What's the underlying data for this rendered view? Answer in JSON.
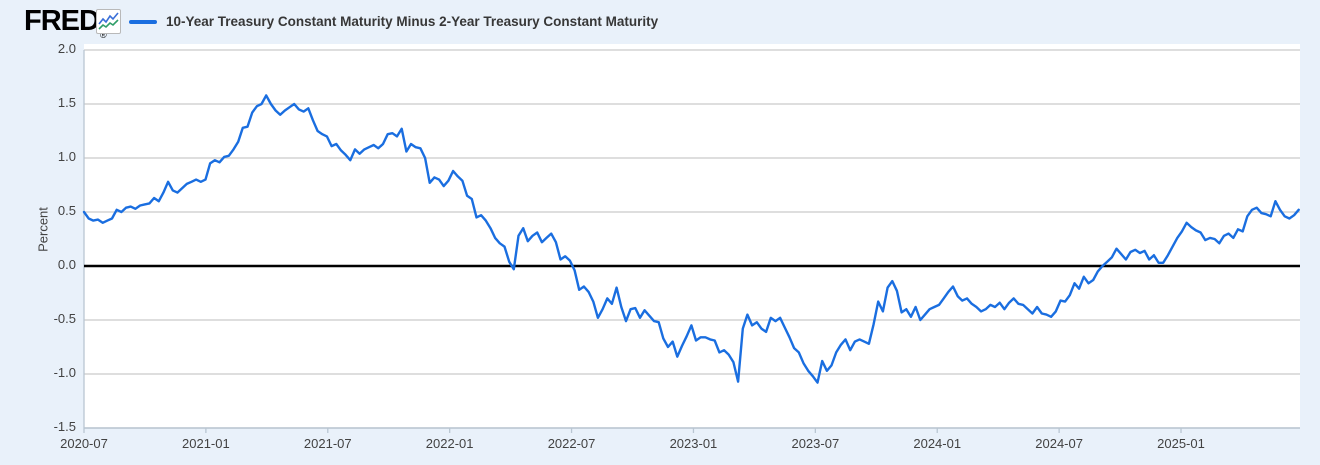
{
  "header": {
    "logo": "FRED",
    "registered_mark": "®",
    "legend_label": "10-Year Treasury Constant Maturity Minus 2-Year Treasury Constant Maturity"
  },
  "colors": {
    "page_bg": "#e9f1fa",
    "plot_bg": "#ffffff",
    "gridline": "#c9c9c9",
    "axis_border": "#b9c6d2",
    "zero_line": "#000000",
    "series_line": "#1a6ee0",
    "tick_text": "#424242",
    "icon_blue": "#3a6fd8",
    "icon_green": "#2f9e68"
  },
  "chart_data": {
    "type": "line",
    "title": "10-Year Treasury Constant Maturity Minus 2-Year Treasury Constant Maturity",
    "ylabel": "Percent",
    "ylim": [
      -1.5,
      2.0
    ],
    "y_ticks": [
      2.0,
      1.5,
      1.0,
      0.5,
      0.0,
      -0.5,
      -1.0,
      -1.5
    ],
    "x_tick_labels": [
      "2020-07",
      "2021-01",
      "2021-07",
      "2022-01",
      "2022-07",
      "2023-01",
      "2023-07",
      "2024-01",
      "2024-07",
      "2025-01"
    ],
    "x_tick_month_interval": 6,
    "grid": true,
    "zero_line": true,
    "legend_position": "top-left",
    "series": [
      {
        "name": "10-Year Treasury Constant Maturity Minus 2-Year Treasury Constant Maturity",
        "unit": "percent",
        "start_date": "2020-07-01",
        "step_days": 7,
        "values": [
          0.5,
          0.44,
          0.42,
          0.43,
          0.4,
          0.42,
          0.44,
          0.52,
          0.5,
          0.54,
          0.55,
          0.53,
          0.56,
          0.57,
          0.58,
          0.63,
          0.6,
          0.68,
          0.78,
          0.7,
          0.68,
          0.72,
          0.76,
          0.78,
          0.8,
          0.78,
          0.8,
          0.95,
          0.98,
          0.96,
          1.01,
          1.02,
          1.08,
          1.15,
          1.28,
          1.29,
          1.42,
          1.48,
          1.5,
          1.58,
          1.5,
          1.44,
          1.4,
          1.44,
          1.47,
          1.5,
          1.45,
          1.43,
          1.46,
          1.35,
          1.25,
          1.22,
          1.2,
          1.11,
          1.13,
          1.07,
          1.03,
          0.98,
          1.08,
          1.04,
          1.08,
          1.1,
          1.12,
          1.09,
          1.13,
          1.22,
          1.23,
          1.2,
          1.27,
          1.06,
          1.13,
          1.1,
          1.09,
          1.0,
          0.77,
          0.82,
          0.8,
          0.74,
          0.79,
          0.88,
          0.83,
          0.79,
          0.65,
          0.62,
          0.45,
          0.47,
          0.42,
          0.35,
          0.26,
          0.21,
          0.18,
          0.04,
          -0.03,
          0.28,
          0.35,
          0.23,
          0.28,
          0.31,
          0.22,
          0.26,
          0.3,
          0.22,
          0.06,
          0.09,
          0.05,
          -0.04,
          -0.22,
          -0.19,
          -0.24,
          -0.33,
          -0.48,
          -0.4,
          -0.3,
          -0.35,
          -0.2,
          -0.38,
          -0.51,
          -0.4,
          -0.39,
          -0.48,
          -0.41,
          -0.46,
          -0.51,
          -0.52,
          -0.67,
          -0.75,
          -0.7,
          -0.84,
          -0.74,
          -0.65,
          -0.55,
          -0.69,
          -0.66,
          -0.66,
          -0.68,
          -0.69,
          -0.8,
          -0.78,
          -0.82,
          -0.89,
          -1.07,
          -0.58,
          -0.45,
          -0.55,
          -0.52,
          -0.58,
          -0.61,
          -0.48,
          -0.51,
          -0.48,
          -0.57,
          -0.66,
          -0.76,
          -0.8,
          -0.9,
          -0.97,
          -1.02,
          -1.08,
          -0.88,
          -0.97,
          -0.92,
          -0.8,
          -0.73,
          -0.68,
          -0.78,
          -0.7,
          -0.68,
          -0.7,
          -0.72,
          -0.54,
          -0.33,
          -0.42,
          -0.2,
          -0.14,
          -0.23,
          -0.43,
          -0.4,
          -0.47,
          -0.38,
          -0.5,
          -0.45,
          -0.4,
          -0.38,
          -0.36,
          -0.3,
          -0.24,
          -0.19,
          -0.28,
          -0.32,
          -0.3,
          -0.35,
          -0.38,
          -0.42,
          -0.4,
          -0.36,
          -0.38,
          -0.34,
          -0.4,
          -0.34,
          -0.3,
          -0.35,
          -0.36,
          -0.4,
          -0.44,
          -0.38,
          -0.44,
          -0.45,
          -0.47,
          -0.42,
          -0.32,
          -0.33,
          -0.27,
          -0.16,
          -0.21,
          -0.1,
          -0.16,
          -0.13,
          -0.05,
          0.0,
          0.04,
          0.08,
          0.16,
          0.11,
          0.06,
          0.13,
          0.15,
          0.12,
          0.14,
          0.06,
          0.1,
          0.03,
          0.03,
          0.1,
          0.18,
          0.26,
          0.32,
          0.4,
          0.36,
          0.33,
          0.31,
          0.24,
          0.26,
          0.25,
          0.21,
          0.28,
          0.3,
          0.26,
          0.34,
          0.32,
          0.46,
          0.52,
          0.54,
          0.49,
          0.48,
          0.46,
          0.6,
          0.52,
          0.46,
          0.44,
          0.47,
          0.52
        ]
      }
    ]
  }
}
